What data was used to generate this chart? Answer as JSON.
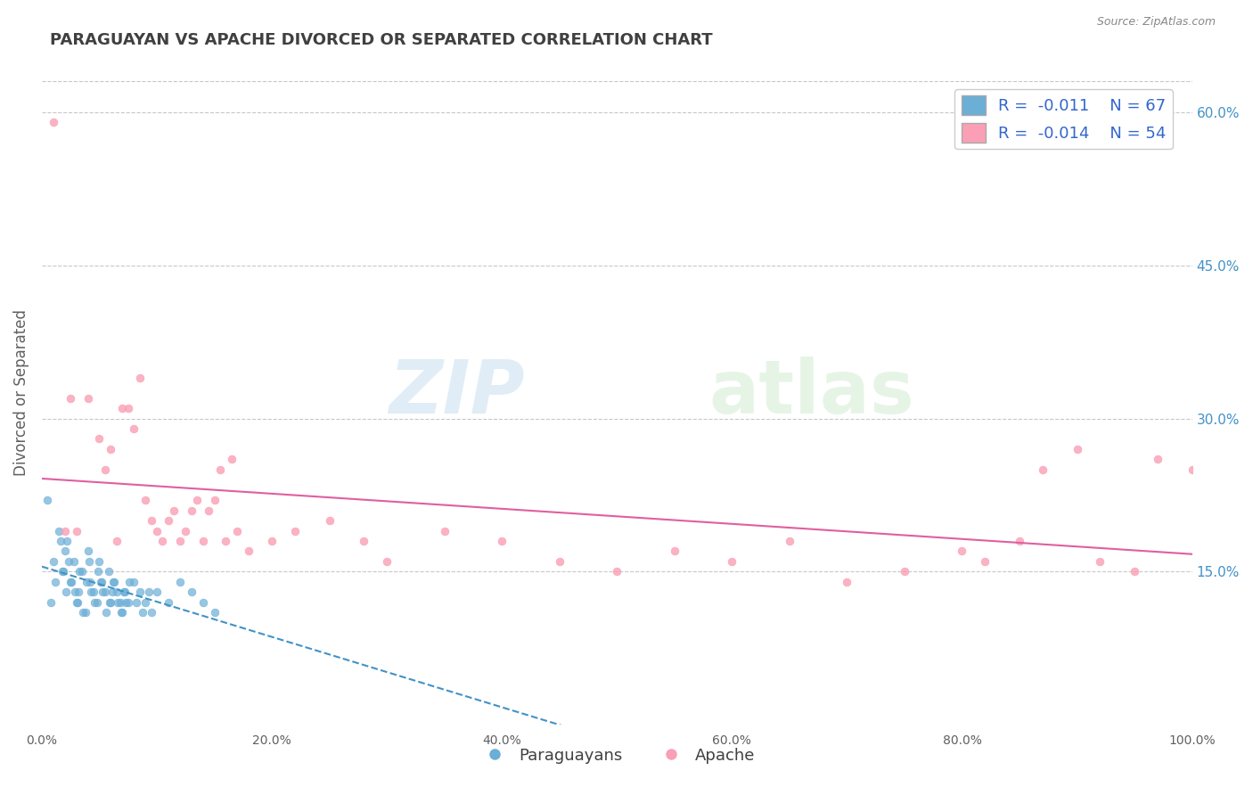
{
  "title": "PARAGUAYAN VS APACHE DIVORCED OR SEPARATED CORRELATION CHART",
  "source": "Source: ZipAtlas.com",
  "xlabel": "",
  "ylabel": "Divorced or Separated",
  "legend_labels": [
    "Paraguayans",
    "Apache"
  ],
  "legend_r": [
    "R =  -0.011",
    "R =  -0.014"
  ],
  "legend_n": [
    "N = 67",
    "N = 54"
  ],
  "blue_color": "#6baed6",
  "pink_color": "#fa9fb5",
  "blue_line_color": "#4292c6",
  "pink_line_color": "#e05fa0",
  "watermark_zip": "ZIP",
  "watermark_atlas": "atlas",
  "xlim": [
    0.0,
    1.0
  ],
  "ylim": [
    0.0,
    0.65
  ],
  "xticks": [
    0.0,
    0.2,
    0.4,
    0.6,
    0.8,
    1.0
  ],
  "yticks_right": [
    0.15,
    0.3,
    0.45,
    0.6
  ],
  "ytick_labels_right": [
    "15.0%",
    "30.0%",
    "45.0%",
    "60.0%"
  ],
  "xtick_labels": [
    "0.0%",
    "20.0%",
    "40.0%",
    "60.0%",
    "80.0%",
    "100.0%"
  ],
  "paraguayan_x": [
    0.005,
    0.008,
    0.01,
    0.012,
    0.015,
    0.018,
    0.02,
    0.022,
    0.025,
    0.028,
    0.03,
    0.032,
    0.035,
    0.038,
    0.04,
    0.042,
    0.045,
    0.048,
    0.05,
    0.052,
    0.055,
    0.058,
    0.06,
    0.062,
    0.065,
    0.068,
    0.07,
    0.072,
    0.075,
    0.08,
    0.085,
    0.09,
    0.095,
    0.1,
    0.11,
    0.12,
    0.13,
    0.14,
    0.15,
    0.016,
    0.019,
    0.021,
    0.023,
    0.026,
    0.029,
    0.031,
    0.033,
    0.036,
    0.039,
    0.041,
    0.043,
    0.046,
    0.049,
    0.051,
    0.053,
    0.056,
    0.059,
    0.061,
    0.063,
    0.066,
    0.069,
    0.071,
    0.073,
    0.076,
    0.082,
    0.088,
    0.093
  ],
  "paraguayan_y": [
    0.22,
    0.12,
    0.16,
    0.14,
    0.19,
    0.15,
    0.17,
    0.18,
    0.14,
    0.16,
    0.12,
    0.13,
    0.15,
    0.11,
    0.17,
    0.14,
    0.13,
    0.12,
    0.16,
    0.14,
    0.13,
    0.15,
    0.12,
    0.14,
    0.13,
    0.12,
    0.11,
    0.13,
    0.12,
    0.14,
    0.13,
    0.12,
    0.11,
    0.13,
    0.12,
    0.14,
    0.13,
    0.12,
    0.11,
    0.18,
    0.15,
    0.13,
    0.16,
    0.14,
    0.13,
    0.12,
    0.15,
    0.11,
    0.14,
    0.16,
    0.13,
    0.12,
    0.15,
    0.14,
    0.13,
    0.11,
    0.12,
    0.13,
    0.14,
    0.12,
    0.11,
    0.13,
    0.12,
    0.14,
    0.12,
    0.11,
    0.13
  ],
  "apache_x": [
    0.01,
    0.02,
    0.025,
    0.04,
    0.05,
    0.055,
    0.065,
    0.07,
    0.08,
    0.085,
    0.09,
    0.1,
    0.11,
    0.12,
    0.13,
    0.14,
    0.15,
    0.16,
    0.17,
    0.18,
    0.2,
    0.22,
    0.25,
    0.28,
    0.3,
    0.35,
    0.4,
    0.45,
    0.5,
    0.55,
    0.6,
    0.65,
    0.7,
    0.75,
    0.8,
    0.82,
    0.85,
    0.87,
    0.9,
    0.92,
    0.95,
    0.97,
    1.0,
    0.03,
    0.06,
    0.075,
    0.095,
    0.105,
    0.115,
    0.125,
    0.135,
    0.145,
    0.155,
    0.165
  ],
  "apache_y": [
    0.59,
    0.19,
    0.32,
    0.32,
    0.28,
    0.25,
    0.18,
    0.31,
    0.29,
    0.34,
    0.22,
    0.19,
    0.2,
    0.18,
    0.21,
    0.18,
    0.22,
    0.18,
    0.19,
    0.17,
    0.18,
    0.19,
    0.2,
    0.18,
    0.16,
    0.19,
    0.18,
    0.16,
    0.15,
    0.17,
    0.16,
    0.18,
    0.14,
    0.15,
    0.17,
    0.16,
    0.18,
    0.25,
    0.27,
    0.16,
    0.15,
    0.26,
    0.25,
    0.19,
    0.27,
    0.31,
    0.2,
    0.18,
    0.21,
    0.19,
    0.22,
    0.21,
    0.25,
    0.26
  ],
  "bg_color": "#ffffff",
  "grid_color": "#c8c8c8",
  "title_color": "#404040",
  "axis_label_color": "#606060",
  "right_tick_color": "#4292c6"
}
